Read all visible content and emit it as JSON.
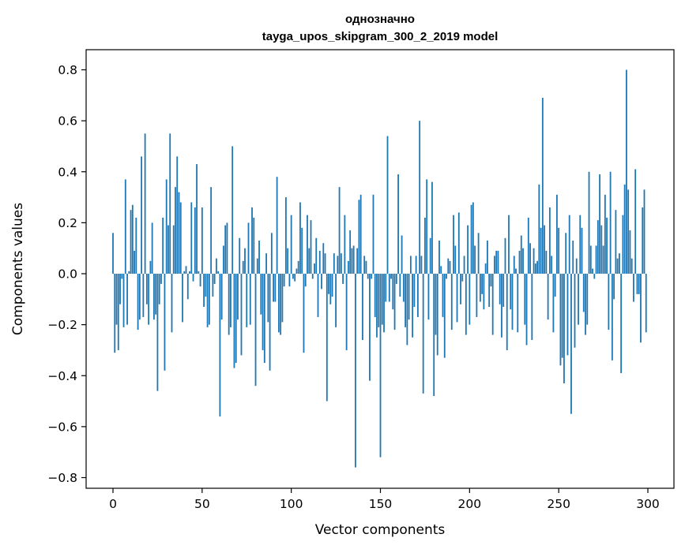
{
  "chart_data": {
    "type": "bar",
    "title_line1": "однозначно",
    "title_line2": "tayga_upos_skipgram_300_2_2019 model",
    "xlabel": "Vector components",
    "ylabel": "Components values",
    "xlim": [
      -15,
      315
    ],
    "ylim": [
      -0.84,
      0.88
    ],
    "xticks": [
      0,
      50,
      100,
      150,
      200,
      250,
      300
    ],
    "yticks": [
      -0.8,
      -0.6,
      -0.4,
      -0.2,
      0.0,
      0.2,
      0.4,
      0.6,
      0.8
    ],
    "ytick_labels": [
      "−0.8",
      "−0.6",
      "−0.4",
      "−0.2",
      "0.0",
      "0.2",
      "0.4",
      "0.6",
      "0.8"
    ],
    "bar_color": "#1f77b4",
    "grid": false,
    "values": [
      0.16,
      -0.31,
      -0.2,
      -0.3,
      -0.12,
      -0.02,
      -0.21,
      0.37,
      -0.2,
      0.01,
      0.25,
      0.27,
      0.09,
      0.22,
      -0.22,
      -0.18,
      0.46,
      -0.17,
      0.55,
      -0.12,
      -0.2,
      0.05,
      0.2,
      -0.18,
      -0.16,
      -0.46,
      -0.12,
      -0.04,
      0.22,
      -0.38,
      0.37,
      0.19,
      0.55,
      -0.23,
      0.19,
      0.34,
      0.46,
      0.32,
      0.28,
      -0.19,
      0.01,
      0.03,
      -0.1,
      0.01,
      0.28,
      -0.03,
      0.26,
      0.43,
      0.01,
      -0.05,
      0.26,
      -0.13,
      -0.09,
      -0.21,
      -0.2,
      0.34,
      -0.09,
      -0.04,
      0.06,
      0.01,
      -0.56,
      -0.18,
      0.11,
      0.19,
      0.2,
      -0.24,
      -0.21,
      0.5,
      -0.37,
      -0.35,
      -0.18,
      0.14,
      -0.32,
      0.05,
      0.1,
      -0.21,
      0.2,
      -0.2,
      0.26,
      0.22,
      -0.44,
      0.06,
      0.13,
      -0.16,
      -0.3,
      -0.35,
      0.08,
      -0.19,
      -0.38,
      0.16,
      -0.11,
      -0.11,
      0.38,
      -0.23,
      -0.24,
      -0.19,
      -0.05,
      0.3,
      0.1,
      -0.05,
      0.23,
      -0.02,
      -0.03,
      0.02,
      0.05,
      0.28,
      0.18,
      -0.31,
      -0.05,
      0.23,
      0.1,
      0.21,
      -0.02,
      0.04,
      0.14,
      -0.17,
      0.09,
      -0.06,
      0.12,
      0.08,
      -0.5,
      -0.08,
      -0.12,
      -0.09,
      0.08,
      -0.21,
      0.07,
      0.34,
      0.08,
      -0.04,
      0.23,
      -0.3,
      0.05,
      0.17,
      0.1,
      0.11,
      -0.76,
      0.1,
      0.29,
      0.31,
      -0.26,
      0.07,
      0.05,
      -0.02,
      -0.42,
      -0.02,
      0.31,
      -0.17,
      -0.25,
      -0.21,
      -0.72,
      -0.2,
      -0.23,
      -0.11,
      0.54,
      -0.11,
      -0.02,
      -0.14,
      -0.22,
      -0.04,
      0.39,
      -0.09,
      0.15,
      -0.11,
      -0.21,
      -0.28,
      -0.18,
      0.07,
      -0.25,
      -0.13,
      0.07,
      -0.17,
      0.6,
      0.07,
      -0.47,
      0.22,
      0.37,
      -0.18,
      0.14,
      0.36,
      -0.48,
      -0.24,
      -0.32,
      0.13,
      0.03,
      -0.17,
      -0.33,
      -0.02,
      0.06,
      0.05,
      -0.22,
      0.23,
      0.11,
      -0.19,
      0.24,
      -0.12,
      -0.03,
      0.07,
      -0.24,
      0.19,
      -0.2,
      0.27,
      0.28,
      0.11,
      -0.17,
      0.16,
      -0.11,
      -0.08,
      -0.14,
      0.04,
      0.13,
      -0.13,
      -0.05,
      -0.24,
      0.07,
      0.09,
      0.09,
      -0.12,
      -0.25,
      -0.13,
      0.14,
      -0.3,
      0.23,
      -0.14,
      -0.22,
      0.07,
      0.02,
      -0.23,
      0.09,
      0.15,
      0.1,
      -0.2,
      -0.28,
      0.22,
      0.12,
      -0.26,
      0.1,
      0.04,
      0.05,
      0.35,
      0.18,
      0.69,
      0.19,
      0.09,
      -0.18,
      0.26,
      0.07,
      -0.23,
      -0.09,
      0.31,
      0.18,
      -0.36,
      -0.33,
      -0.43,
      0.16,
      -0.32,
      0.23,
      -0.55,
      0.13,
      -0.29,
      0.06,
      -0.2,
      0.23,
      0.18,
      -0.15,
      -0.24,
      -0.2,
      0.4,
      0.11,
      0.02,
      -0.02,
      0.11,
      0.21,
      0.39,
      0.19,
      0.11,
      0.31,
      0.22,
      -0.22,
      0.4,
      -0.34,
      -0.1,
      0.25,
      0.06,
      0.08,
      -0.39,
      0.23,
      0.35,
      0.8,
      0.33,
      0.17,
      0.06,
      -0.11,
      0.41,
      -0.08,
      -0.08,
      -0.27,
      0.26,
      0.33,
      -0.23
    ]
  }
}
